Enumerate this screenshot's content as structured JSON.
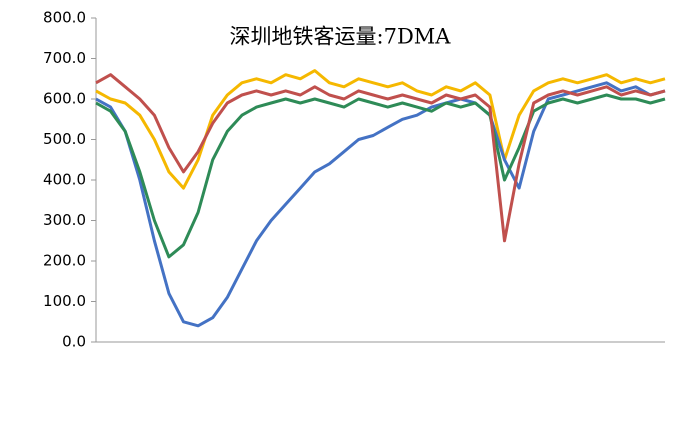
{
  "chart_data": {
    "type": "line",
    "title": "深圳地铁客运量:7DMA",
    "ylim": [
      0,
      800
    ],
    "yticks": [
      {
        "value": 0,
        "label": "0.0"
      },
      {
        "value": 100,
        "label": "100.0"
      },
      {
        "value": 200,
        "label": "200.0"
      },
      {
        "value": 300,
        "label": "300.0"
      },
      {
        "value": 400,
        "label": "400.0"
      },
      {
        "value": 500,
        "label": "500.0"
      },
      {
        "value": 600,
        "label": "600.0"
      },
      {
        "value": 700,
        "label": "700.0"
      },
      {
        "value": 800,
        "label": "800.0"
      }
    ],
    "series": [
      {
        "color": "#f5b800",
        "values": [
          620,
          600,
          590,
          560,
          500,
          420,
          380,
          450,
          560,
          610,
          640,
          650,
          640,
          660,
          650,
          670,
          640,
          630,
          650,
          640,
          630,
          640,
          620,
          610,
          630,
          620,
          640,
          610,
          450,
          560,
          620,
          640,
          650,
          640,
          650,
          660,
          640,
          650,
          640,
          650
        ]
      },
      {
        "color": "#4472c4",
        "values": [
          600,
          580,
          520,
          400,
          250,
          120,
          50,
          40,
          60,
          110,
          180,
          250,
          300,
          340,
          380,
          420,
          440,
          470,
          500,
          510,
          530,
          550,
          560,
          580,
          590,
          600,
          590,
          560,
          450,
          380,
          520,
          600,
          610,
          620,
          630,
          640,
          620,
          630,
          610,
          620
        ]
      },
      {
        "color": "#2e8b57",
        "values": [
          590,
          570,
          520,
          420,
          300,
          210,
          240,
          320,
          450,
          520,
          560,
          580,
          590,
          600,
          590,
          600,
          590,
          580,
          600,
          590,
          580,
          590,
          580,
          570,
          590,
          580,
          590,
          560,
          400,
          480,
          570,
          590,
          600,
          590,
          600,
          610,
          600,
          600,
          590,
          600
        ]
      },
      {
        "color": "#c0504d",
        "values": [
          640,
          660,
          630,
          600,
          560,
          480,
          420,
          470,
          540,
          590,
          610,
          620,
          610,
          620,
          610,
          630,
          610,
          600,
          620,
          610,
          600,
          610,
          600,
          590,
          610,
          600,
          610,
          580,
          250,
          440,
          590,
          610,
          620,
          610,
          620,
          630,
          610,
          620,
          610,
          620
        ]
      }
    ]
  }
}
